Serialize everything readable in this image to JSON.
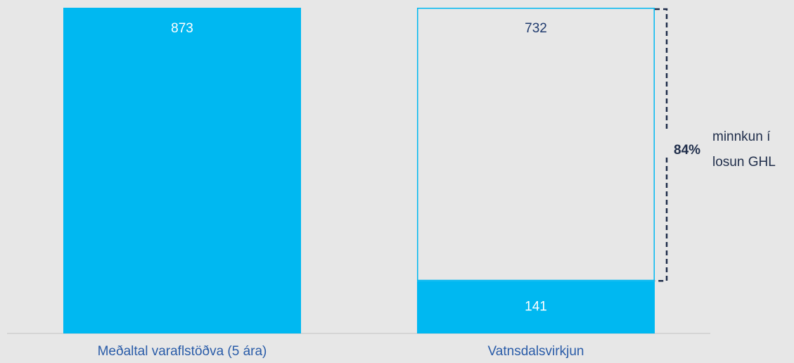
{
  "chart_data": {
    "type": "stacked_bar",
    "categories": [
      "Meðaltal varaflstöðva (5 ára)",
      "Vatnsdalsvirkjun"
    ],
    "series": [
      {
        "color": "#00b8f1",
        "style": "filled",
        "values": [
          873,
          141
        ]
      },
      {
        "color": "#00b8f1",
        "style": "outline",
        "values": [
          null,
          732
        ]
      }
    ],
    "annotation": {
      "label": "84%",
      "text": [
        "minnkun í",
        "losun GHL"
      ]
    }
  }
}
